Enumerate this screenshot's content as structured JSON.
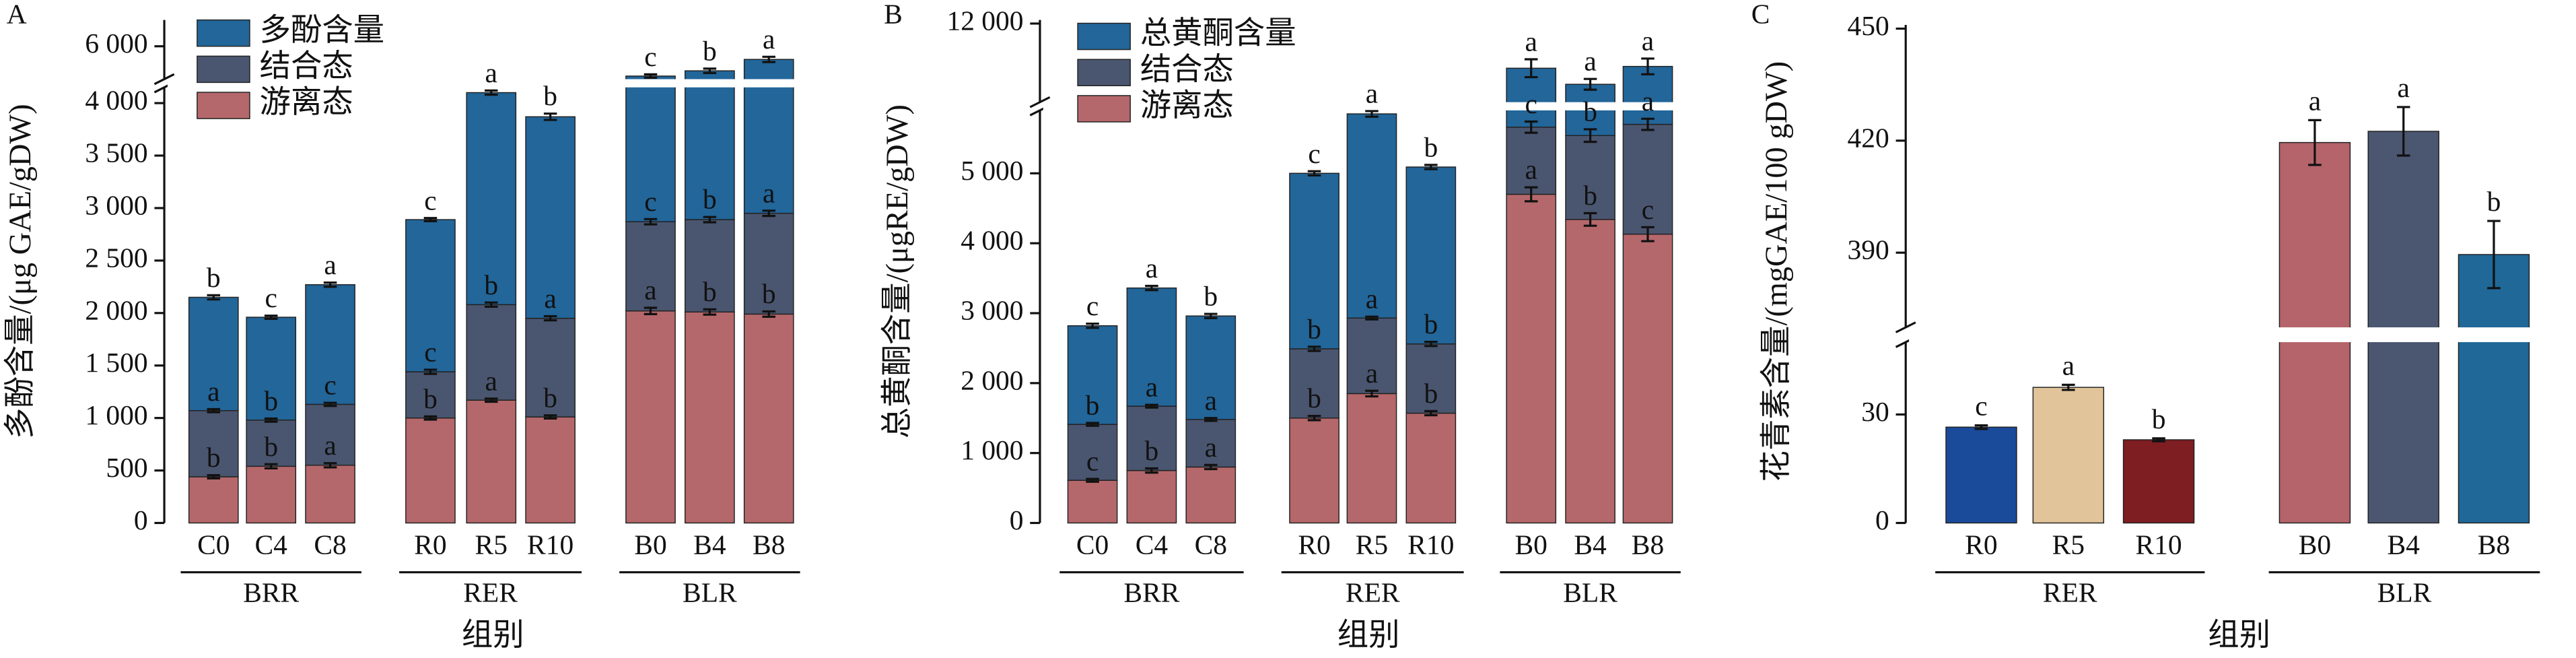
{
  "chart_data": [
    {
      "type": "bar",
      "stacked": true,
      "panel_label": "A",
      "y_label": "多酚含量/(μg GAE/gDW)",
      "x_label": "组别",
      "categories": [
        "C0",
        "C4",
        "C8",
        "R0",
        "R5",
        "R10",
        "B0",
        "B4",
        "B8"
      ],
      "groups": [
        "BRR",
        "RER",
        "BLR"
      ],
      "series": [
        {
          "name": "多酚含量",
          "color": "#22669a",
          "values": [
            1080,
            980,
            1140,
            1450,
            2020,
            1920,
            2790,
            2830,
            2900
          ],
          "errors": [
            20,
            15,
            20,
            15,
            20,
            30,
            20,
            25,
            30
          ],
          "letters": [
            "b",
            "c",
            "a",
            "c",
            "a",
            "b",
            "c",
            "b",
            "a"
          ]
        },
        {
          "name": "结合态",
          "color": "#4a5670",
          "values": [
            630,
            440,
            580,
            440,
            910,
            940,
            850,
            880,
            960
          ],
          "errors": [
            15,
            15,
            15,
            20,
            20,
            20,
            25,
            25,
            25
          ],
          "letters": [
            "a",
            "b",
            "c",
            "c",
            "b",
            "a",
            "c",
            "b",
            "a"
          ]
        },
        {
          "name": "游离态",
          "color": "#b5686b",
          "values": [
            440,
            540,
            550,
            1000,
            1170,
            1010,
            2020,
            2010,
            1990
          ],
          "errors": [
            15,
            20,
            20,
            15,
            15,
            15,
            30,
            25,
            25
          ],
          "letters": [
            "b",
            "b",
            "a",
            "b",
            "a",
            "b",
            "a",
            "b",
            "b"
          ]
        }
      ],
      "ylim": [
        0,
        6300
      ],
      "ybreak": [
        4150,
        5625
      ],
      "yticks": [
        0,
        500,
        {
          "value": 1000,
          "label": "1 000"
        },
        {
          "value": 1500,
          "label": "1 500"
        },
        {
          "value": 2000,
          "label": "2 000"
        },
        {
          "value": 2500,
          "label": "2 500"
        },
        {
          "value": 3000,
          "label": "3 000"
        },
        {
          "value": 3500,
          "label": "3 500"
        },
        {
          "value": 4000,
          "label": "4 000"
        },
        {
          "value": 6000,
          "label": "6 000"
        }
      ],
      "legend": "upper left"
    },
    {
      "type": "bar",
      "stacked": true,
      "panel_label": "B",
      "y_label": "总黄酮含量/(μgRE/gDW)",
      "x_label": "组别",
      "categories": [
        "C0",
        "C4",
        "C8",
        "R0",
        "R5",
        "R10",
        "B0",
        "B4",
        "B8"
      ],
      "groups": [
        "BRR",
        "RER",
        "BLR"
      ],
      "series": [
        {
          "name": "总黄酮含量",
          "color": "#22669a",
          "values": [
            1410,
            1690,
            1480,
            2510,
            2920,
            2530,
            5090,
            4760,
            5100
          ],
          "errors": [
            30,
            30,
            30,
            30,
            40,
            30,
            250,
            150,
            220
          ],
          "letters": [
            "c",
            "a",
            "b",
            "c",
            "a",
            "b",
            "a",
            "a",
            "a"
          ]
        },
        {
          "name": "结合态",
          "color": "#4a5670",
          "values": [
            800,
            920,
            680,
            990,
            1080,
            990,
            960,
            1200,
            1570
          ],
          "errors": [
            20,
            20,
            20,
            30,
            20,
            30,
            80,
            90,
            80
          ],
          "letters": [
            "b",
            "a",
            "a",
            "b",
            "a",
            "b",
            "c",
            "b",
            "a"
          ]
        },
        {
          "name": "游离态",
          "color": "#b5686b",
          "values": [
            610,
            750,
            800,
            1500,
            1850,
            1570,
            4700,
            4340,
            4130
          ],
          "errors": [
            20,
            30,
            30,
            30,
            40,
            30,
            100,
            90,
            100
          ],
          "letters": [
            "c",
            "b",
            "a",
            "b",
            "a",
            "b",
            "a",
            "b",
            "c"
          ]
        }
      ],
      "ylim": [
        0,
        12100
      ],
      "ybreak": [
        5900,
        9800
      ],
      "yticks": [
        0,
        {
          "value": 1000,
          "label": "1 000"
        },
        {
          "value": 2000,
          "label": "2 000"
        },
        {
          "value": 3000,
          "label": "3 000"
        },
        {
          "value": 4000,
          "label": "4 000"
        },
        {
          "value": 5000,
          "label": "5 000"
        },
        {
          "value": 12000,
          "label": "12 000"
        }
      ],
      "legend": "upper left"
    },
    {
      "type": "bar",
      "stacked": false,
      "panel_label": "C",
      "y_label": "花青素含量/(mgGAE/100 gDW)",
      "x_label": "组别",
      "categories": [
        "R0",
        "R5",
        "R10",
        "B0",
        "B4",
        "B8"
      ],
      "groups": [
        "RER",
        "BLR"
      ],
      "values": [
        26.5,
        37.5,
        23,
        419.5,
        422.5,
        389.5
      ],
      "errors": [
        0.5,
        0.7,
        0.4,
        6,
        6.5,
        9
      ],
      "letters": [
        "c",
        "a",
        "b",
        "a",
        "a",
        "b"
      ],
      "colors": [
        "#1a4a9a",
        "#e2c49a",
        "#7e1d22",
        "#b4646a",
        "#4b5671",
        "#1f6897"
      ],
      "ylim": [
        0,
        451
      ],
      "ybreak": [
        50,
        370
      ],
      "yticks": [
        0,
        30,
        390,
        420,
        450
      ]
    }
  ]
}
